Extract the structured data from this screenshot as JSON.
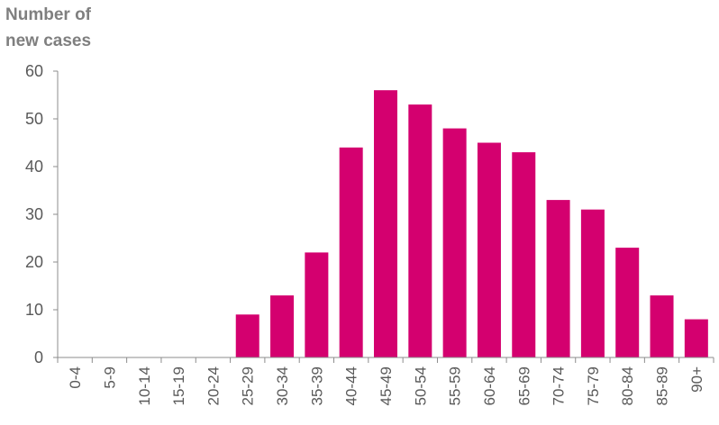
{
  "chart_data": {
    "type": "bar",
    "title": "",
    "xlabel": "",
    "ylabel_lines": [
      "Number of",
      "new cases"
    ],
    "ylim": [
      0,
      60
    ],
    "yticks": [
      0,
      10,
      20,
      30,
      40,
      50,
      60
    ],
    "grid": false,
    "legend": "none",
    "bar_color": "#d4006f",
    "categories": [
      "0-4",
      "5-9",
      "10-14",
      "15-19",
      "20-24",
      "25-29",
      "30-34",
      "35-39",
      "40-44",
      "45-49",
      "50-54",
      "55-59",
      "60-64",
      "65-69",
      "70-74",
      "75-79",
      "80-84",
      "85-89",
      "90+"
    ],
    "values": [
      0,
      0,
      0,
      0,
      0,
      9,
      13,
      22,
      44,
      56,
      53,
      48,
      45,
      43,
      33,
      31,
      23,
      13,
      8
    ]
  }
}
